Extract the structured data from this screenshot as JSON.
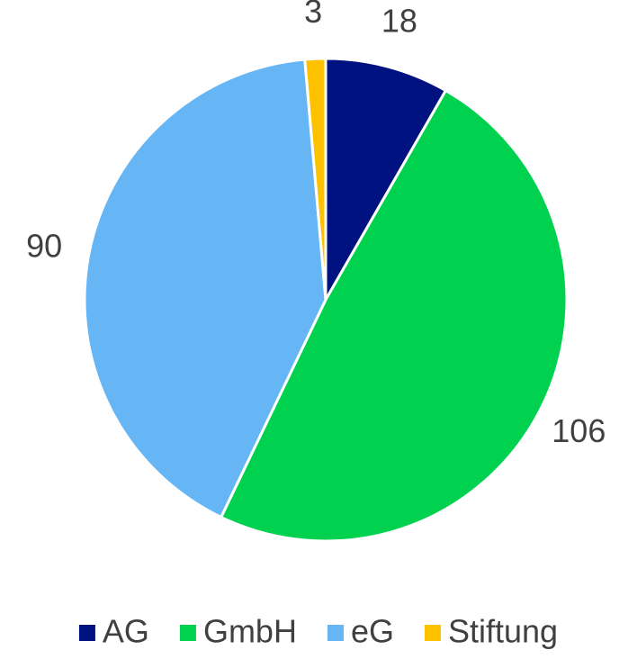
{
  "chart_data": {
    "type": "pie",
    "categories": [
      "AG",
      "GmbH",
      "eG",
      "Stiftung"
    ],
    "values": [
      18,
      106,
      90,
      3
    ],
    "colors": [
      "#00127f",
      "#00d250",
      "#66b5f5",
      "#ffc000"
    ],
    "legend": "bottom"
  }
}
